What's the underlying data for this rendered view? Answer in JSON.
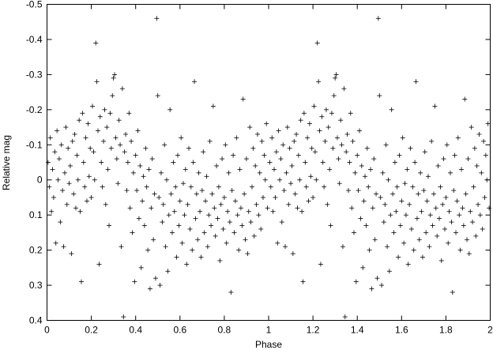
{
  "chart_data": {
    "type": "scatter",
    "title": "",
    "xlabel": "Phase",
    "ylabel": "Relative mag",
    "xlim": [
      0,
      2
    ],
    "ylim": [
      -0.5,
      0.4
    ],
    "y_inverted": true,
    "grid": false,
    "legend": "none",
    "marker": "plus",
    "marker_color": "#000000",
    "x_ticks": [
      "0",
      "0.2",
      "0.4",
      "0.6",
      "0.8",
      "1",
      "1.2",
      "1.4",
      "1.6",
      "1.8",
      "2"
    ],
    "y_ticks": [
      "-0.5",
      "-0.4",
      "-0.3",
      "-0.2",
      "-0.1",
      "0",
      "0.1",
      "0.2",
      "0.3",
      "0.4"
    ],
    "period_repeat": "points at phase p are shown again at phase p+1",
    "series": [
      {
        "points": [
          [
            0.005,
            -0.05
          ],
          [
            0.01,
            0.02
          ],
          [
            0.015,
            -0.12
          ],
          [
            0.02,
            0.09
          ],
          [
            0.025,
            -0.03
          ],
          [
            0.03,
            0.05
          ],
          [
            0.035,
            -0.08
          ],
          [
            0.04,
            0.18
          ],
          [
            0.045,
            -0.14
          ],
          [
            0.05,
            0.0
          ],
          [
            0.055,
            -0.06
          ],
          [
            0.06,
            0.12
          ],
          [
            0.065,
            -0.1
          ],
          [
            0.07,
            0.03
          ],
          [
            0.075,
            0.19
          ],
          [
            0.08,
            -0.02
          ],
          [
            0.085,
            -0.15
          ],
          [
            0.09,
            0.07
          ],
          [
            0.095,
            -0.09
          ],
          [
            0.1,
            0.01
          ],
          [
            0.105,
            -0.04
          ],
          [
            0.11,
            0.21
          ],
          [
            0.115,
            -0.11
          ],
          [
            0.12,
            0.04
          ],
          [
            0.125,
            -0.13
          ],
          [
            0.13,
            0.08
          ],
          [
            0.135,
            -0.07
          ],
          [
            0.14,
            0.0
          ],
          [
            0.145,
            -0.17
          ],
          [
            0.15,
            0.09
          ],
          [
            0.155,
            0.29
          ],
          [
            0.16,
            -0.19
          ],
          [
            0.165,
            -0.05
          ],
          [
            0.17,
            0.02
          ],
          [
            0.175,
            -0.12
          ],
          [
            0.18,
            0.06
          ],
          [
            0.185,
            -0.16
          ],
          [
            0.19,
            -0.01
          ],
          [
            0.195,
            -0.09
          ],
          [
            0.2,
            0.05
          ],
          [
            0.205,
            -0.21
          ],
          [
            0.21,
            -0.08
          ],
          [
            0.215,
            0.0
          ],
          [
            0.22,
            -0.39
          ],
          [
            0.225,
            -0.28
          ],
          [
            0.23,
            -0.14
          ],
          [
            0.235,
            0.24
          ],
          [
            0.24,
            -0.18
          ],
          [
            0.245,
            -0.05
          ],
          [
            0.25,
            0.02
          ],
          [
            0.255,
            -0.11
          ],
          [
            0.26,
            -0.2
          ],
          [
            0.265,
            0.07
          ],
          [
            0.27,
            -0.15
          ],
          [
            0.275,
            -0.03
          ],
          [
            0.28,
            0.13
          ],
          [
            0.285,
            -0.19
          ],
          [
            0.29,
            -0.09
          ],
          [
            0.295,
            -0.24
          ],
          [
            0.3,
            -0.29
          ],
          [
            0.305,
            -0.3
          ],
          [
            0.31,
            -0.12
          ],
          [
            0.315,
            -0.06
          ],
          [
            0.32,
            0.01
          ],
          [
            0.325,
            -0.17
          ],
          [
            0.33,
            -0.1
          ],
          [
            0.335,
            0.19
          ],
          [
            0.34,
            -0.26
          ],
          [
            0.345,
            0.39
          ],
          [
            0.35,
            -0.08
          ],
          [
            0.355,
            -0.13
          ],
          [
            0.36,
            0.03
          ],
          [
            0.365,
            -0.05
          ],
          [
            0.37,
            -0.19
          ],
          [
            0.375,
            0.08
          ],
          [
            0.38,
            -0.11
          ],
          [
            0.385,
            0.15
          ],
          [
            0.39,
            -0.02
          ],
          [
            0.395,
            0.29
          ],
          [
            0.4,
            -0.07
          ],
          [
            0.405,
            0.03
          ],
          [
            0.41,
            -0.14
          ],
          [
            0.415,
            0.11
          ],
          [
            0.42,
            -0.04
          ],
          [
            0.425,
            0.25
          ],
          [
            0.43,
            0.06
          ],
          [
            0.435,
            -0.01
          ],
          [
            0.44,
            0.13
          ],
          [
            0.445,
            -0.09
          ],
          [
            0.45,
            0.02
          ],
          [
            0.455,
            0.2
          ],
          [
            0.46,
            -0.03
          ],
          [
            0.465,
            0.31
          ],
          [
            0.47,
            0.08
          ],
          [
            0.475,
            -0.06
          ],
          [
            0.48,
            0.17
          ],
          [
            0.485,
            0.04
          ],
          [
            0.49,
            0.28
          ],
          [
            0.495,
            -0.46
          ],
          [
            0.5,
            -0.24
          ],
          [
            0.505,
            0.05
          ],
          [
            0.51,
            0.3
          ],
          [
            0.515,
            -0.02
          ],
          [
            0.52,
            0.12
          ],
          [
            0.525,
            0.07
          ],
          [
            0.53,
            -0.1
          ],
          [
            0.535,
            0.19
          ],
          [
            0.54,
            0.0
          ],
          [
            0.545,
            0.26
          ],
          [
            0.55,
            0.1
          ],
          [
            0.555,
            -0.2
          ],
          [
            0.56,
            0.04
          ],
          [
            0.565,
            0.15
          ],
          [
            0.57,
            -0.05
          ],
          [
            0.575,
            0.09
          ],
          [
            0.58,
            0.02
          ],
          [
            0.585,
            0.22
          ],
          [
            0.59,
            -0.07
          ],
          [
            0.595,
            0.13
          ],
          [
            0.6,
            0.06
          ],
          [
            0.605,
            -0.12
          ],
          [
            0.61,
            0.18
          ],
          [
            0.615,
            0.01
          ],
          [
            0.62,
            0.1
          ],
          [
            0.625,
            -0.03
          ],
          [
            0.63,
            0.24
          ],
          [
            0.635,
            0.07
          ],
          [
            0.64,
            -0.09
          ],
          [
            0.645,
            0.14
          ],
          [
            0.65,
            0.02
          ],
          [
            0.655,
            0.2
          ],
          [
            0.66,
            -0.05
          ],
          [
            0.665,
            -0.28
          ],
          [
            0.67,
            0.11
          ],
          [
            0.675,
            0.04
          ],
          [
            0.68,
            0.17
          ],
          [
            0.685,
            -0.02
          ],
          [
            0.69,
            0.09
          ],
          [
            0.695,
            0.22
          ],
          [
            0.7,
            0.03
          ],
          [
            0.705,
            -0.08
          ],
          [
            0.71,
            0.15
          ],
          [
            0.715,
            0.06
          ],
          [
            0.72,
            -0.01
          ],
          [
            0.725,
            0.19
          ],
          [
            0.73,
            0.1
          ],
          [
            0.735,
            -0.11
          ],
          [
            0.74,
            0.13
          ],
          [
            0.745,
            0.04
          ],
          [
            0.75,
            -0.21
          ],
          [
            0.755,
            0.08
          ],
          [
            0.76,
            0.16
          ],
          [
            0.765,
            -0.04
          ],
          [
            0.77,
            0.11
          ],
          [
            0.775,
            0.02
          ],
          [
            0.78,
            0.23
          ],
          [
            0.785,
            0.07
          ],
          [
            0.79,
            -0.06
          ],
          [
            0.795,
            0.14
          ],
          [
            0.8,
            0.05
          ],
          [
            0.805,
            -0.1
          ],
          [
            0.81,
            0.18
          ],
          [
            0.815,
            0.09
          ],
          [
            0.82,
            -0.02
          ],
          [
            0.825,
            0.12
          ],
          [
            0.83,
            0.32
          ],
          [
            0.835,
            0.03
          ],
          [
            0.84,
            -0.07
          ],
          [
            0.845,
            0.15
          ],
          [
            0.85,
            0.06
          ],
          [
            0.855,
            -0.12
          ],
          [
            0.86,
            0.1
          ],
          [
            0.865,
            0.2
          ],
          [
            0.87,
            -0.03
          ],
          [
            0.875,
            0.08
          ],
          [
            0.88,
            0.13
          ],
          [
            0.885,
            -0.23
          ],
          [
            0.89,
            0.04
          ],
          [
            0.895,
            0.17
          ],
          [
            0.9,
            -0.06
          ],
          [
            0.905,
            0.21
          ],
          [
            0.91,
            0.09
          ],
          [
            0.915,
            -0.15
          ],
          [
            0.92,
            0.12
          ],
          [
            0.925,
            0.02
          ],
          [
            0.93,
            -0.09
          ],
          [
            0.935,
            0.16
          ],
          [
            0.94,
            -0.04
          ],
          [
            0.945,
            0.07
          ],
          [
            0.95,
            -0.13
          ],
          [
            0.955,
            0.1
          ],
          [
            0.96,
            -0.02
          ],
          [
            0.965,
            0.14
          ],
          [
            0.97,
            -0.11
          ],
          [
            0.975,
            0.05
          ],
          [
            0.98,
            -0.07
          ],
          [
            0.985,
            0.0
          ],
          [
            0.99,
            -0.16
          ],
          [
            0.995,
            0.08
          ]
        ]
      }
    ]
  }
}
